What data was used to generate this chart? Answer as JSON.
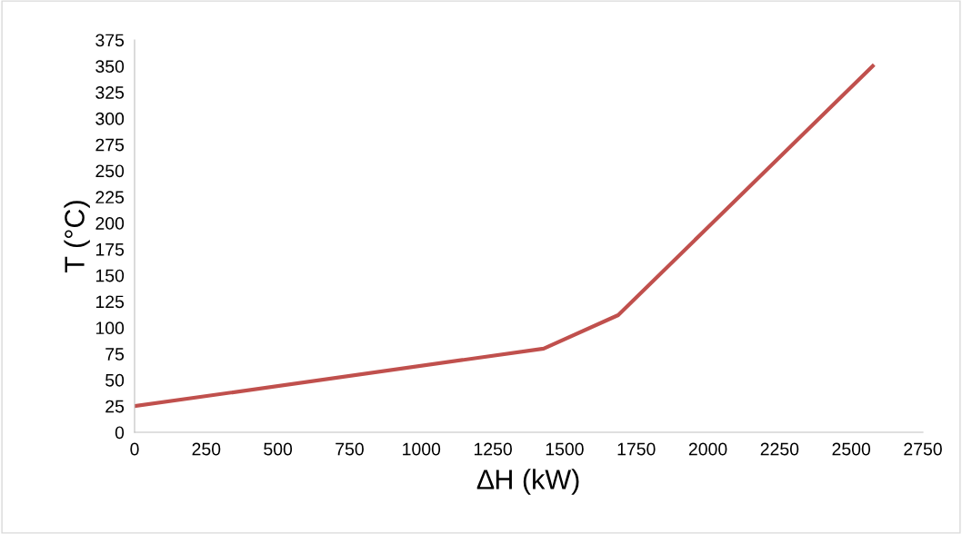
{
  "chart_data": {
    "type": "line",
    "xlabel": "∆H (kW)",
    "ylabel": "T (°C)",
    "x": [
      0,
      1427,
      1687,
      2575
    ],
    "series": [
      {
        "color": "#c0504d",
        "values": [
          25,
          80,
          112,
          350
        ]
      }
    ],
    "xlim": [
      0,
      2750
    ],
    "xticks": [
      0,
      250,
      500,
      750,
      1000,
      1250,
      1500,
      1750,
      2000,
      2250,
      2500,
      2750
    ],
    "ylim": [
      0,
      375
    ],
    "yticks": [
      0,
      25,
      50,
      75,
      100,
      125,
      150,
      175,
      200,
      225,
      250,
      275,
      300,
      325,
      350,
      375
    ],
    "grid": false,
    "legend": false,
    "marker": "none",
    "line_style": "solid"
  }
}
